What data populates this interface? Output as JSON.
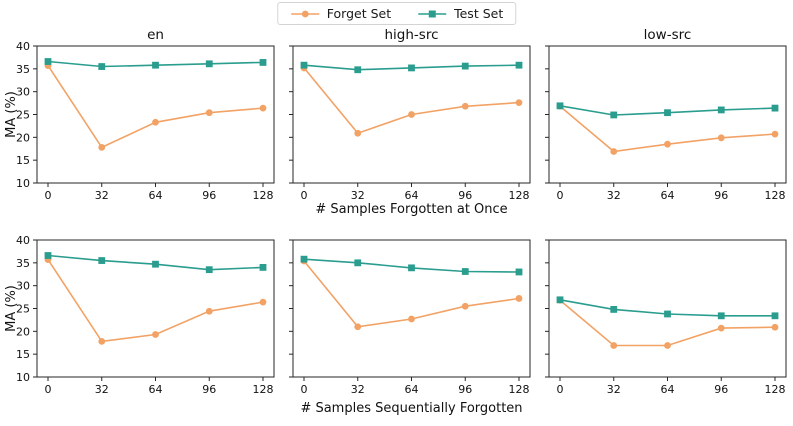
{
  "legend": {
    "items": [
      {
        "label": "Forget Set",
        "color": "#f2a265",
        "marker": "circle"
      },
      {
        "label": "Test Set",
        "color": "#2a9d8f",
        "marker": "square"
      }
    ]
  },
  "chart_data": {
    "type": "line",
    "x": [
      0,
      32,
      64,
      96,
      128
    ],
    "xticks": [
      0,
      32,
      64,
      96,
      128
    ],
    "ylim": [
      10,
      40
    ],
    "yticks": [
      10,
      15,
      20,
      25,
      30,
      35,
      40
    ],
    "ylabel": "MA (%)",
    "columns": [
      "en",
      "high-src",
      "low-src"
    ],
    "legend_position": "top-center",
    "grid": false,
    "rows": [
      {
        "xlabel": "# Samples Forgotten at Once",
        "subplots": [
          {
            "title": "en",
            "series": [
              {
                "name": "Forget Set",
                "values": [
                  35.7,
                  17.8,
                  23.3,
                  25.4,
                  26.4
                ]
              },
              {
                "name": "Test Set",
                "values": [
                  36.6,
                  35.5,
                  35.8,
                  36.1,
                  36.4
                ]
              }
            ]
          },
          {
            "title": "high-src",
            "series": [
              {
                "name": "Forget Set",
                "values": [
                  35.2,
                  20.9,
                  25.0,
                  26.8,
                  27.6
                ]
              },
              {
                "name": "Test Set",
                "values": [
                  35.8,
                  34.8,
                  35.2,
                  35.6,
                  35.8
                ]
              }
            ]
          },
          {
            "title": "low-src",
            "series": [
              {
                "name": "Forget Set",
                "values": [
                  26.8,
                  16.9,
                  18.5,
                  19.9,
                  20.7
                ]
              },
              {
                "name": "Test Set",
                "values": [
                  26.9,
                  24.9,
                  25.4,
                  26.0,
                  26.4
                ]
              }
            ]
          }
        ]
      },
      {
        "xlabel": "# Samples Sequentially Forgotten",
        "subplots": [
          {
            "title": "",
            "series": [
              {
                "name": "Forget Set",
                "values": [
                  35.7,
                  17.8,
                  19.3,
                  24.4,
                  26.4
                ]
              },
              {
                "name": "Test Set",
                "values": [
                  36.6,
                  35.5,
                  34.7,
                  33.5,
                  34.0
                ]
              }
            ]
          },
          {
            "title": "",
            "series": [
              {
                "name": "Forget Set",
                "values": [
                  35.4,
                  21.0,
                  22.7,
                  25.5,
                  27.2
                ]
              },
              {
                "name": "Test Set",
                "values": [
                  35.8,
                  35.0,
                  33.9,
                  33.1,
                  33.0
                ]
              }
            ]
          },
          {
            "title": "",
            "series": [
              {
                "name": "Forget Set",
                "values": [
                  26.8,
                  16.9,
                  16.9,
                  20.7,
                  20.9
                ]
              },
              {
                "name": "Test Set",
                "values": [
                  26.9,
                  24.8,
                  23.8,
                  23.4,
                  23.4
                ]
              }
            ]
          }
        ]
      }
    ]
  }
}
